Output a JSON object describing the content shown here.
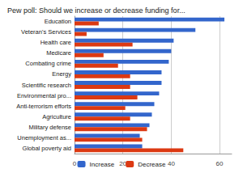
{
  "chart_data": {
    "type": "bar",
    "title": "Pew poll: Should we increase or decrease funding for...",
    "orientation": "horizontal",
    "categories": [
      "Education",
      "Veteran's Services",
      "Health care",
      "Medicare",
      "Combating crime",
      "Energy",
      "Scientific research",
      "Environmental pro...",
      "Anti-terrorism efforts",
      "Agriculture",
      "Military defense",
      "Unemployment as...",
      "Global poverty aid"
    ],
    "series": [
      {
        "name": "Increase",
        "color": "#3366cc",
        "values": [
          62,
          50,
          41,
          40,
          39,
          36,
          36,
          35,
          33,
          32,
          31,
          27,
          28
        ]
      },
      {
        "name": "Decrease",
        "color": "#dc3912",
        "values": [
          10,
          5,
          24,
          12,
          18,
          23,
          23,
          26,
          21,
          23,
          30,
          28,
          45
        ]
      }
    ],
    "xlim": [
      0,
      65
    ],
    "xticks": [
      0,
      20,
      40,
      60
    ],
    "grid": true,
    "legend": "bottom"
  }
}
